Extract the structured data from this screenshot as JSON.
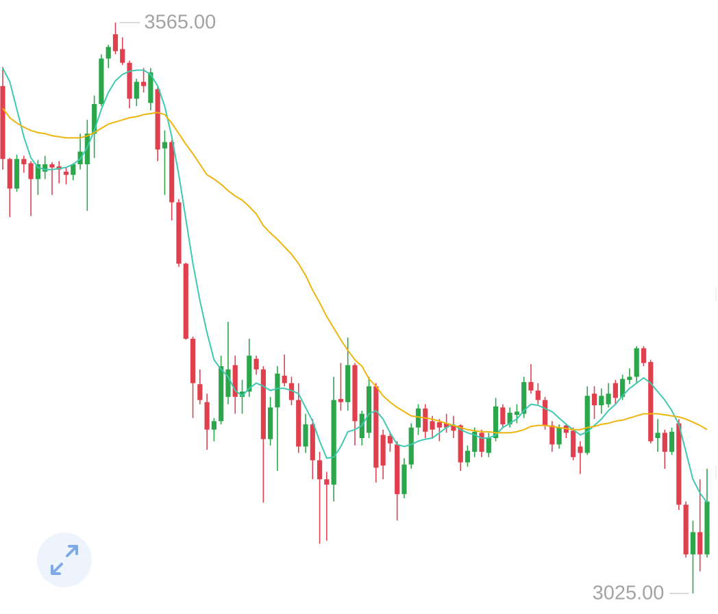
{
  "chart_data": {
    "type": "candlestick",
    "ylim": [
      3005.6,
      3586.4
    ],
    "up_color": "#2ca64b",
    "down_color": "#e0404e",
    "max_label": {
      "value": 3565,
      "label": "3565.00"
    },
    "min_label": {
      "value": 3025,
      "label": "3025.00"
    },
    "open": [
      3505,
      3436,
      3408,
      3436,
      3432,
      3417,
      3424,
      3431,
      3429,
      3424,
      3421,
      3431,
      3431,
      3460,
      3488,
      3531,
      3554,
      3540,
      3527,
      3493,
      3509,
      3489,
      3502,
      3446,
      3452,
      3395,
      3337,
      3266,
      3223,
      3206,
      3180,
      3188,
      3211,
      3241,
      3211,
      3216,
      3247,
      3237,
      3171,
      3201,
      3231,
      3224,
      3208,
      3164,
      3185,
      3151,
      3133,
      3128,
      3209,
      3206,
      3241,
      3172,
      3177,
      3221,
      3175,
      3174,
      3166,
      3119,
      3147,
      3182,
      3200,
      3188,
      3187,
      3186,
      3184,
      3184,
      3149,
      3159,
      3177,
      3158,
      3172,
      3201,
      3185,
      3194,
      3195,
      3225,
      3217,
      3208,
      3184,
      3166,
      3184,
      3179,
      3164,
      3158,
      3214,
      3203,
      3204,
      3224,
      3211,
      3227,
      3230,
      3257,
      3244,
      3172,
      3177,
      3159,
      3186,
      3109,
      3062,
      3083,
      3062
    ],
    "high": [
      3523,
      3437,
      3440,
      3439,
      3434,
      3435,
      3439,
      3433,
      3434,
      3428,
      3432,
      3460,
      3473,
      3496,
      3535,
      3544,
      3565,
      3551,
      3529,
      3512,
      3522,
      3522,
      3504,
      3463,
      3454,
      3398,
      3338,
      3268,
      3237,
      3214,
      3191,
      3250,
      3282,
      3250,
      3227,
      3266,
      3250,
      3240,
      3211,
      3240,
      3251,
      3230,
      3224,
      3195,
      3190,
      3159,
      3140,
      3230,
      3243,
      3267,
      3243,
      3198,
      3230,
      3224,
      3180,
      3178,
      3169,
      3153,
      3186,
      3204,
      3204,
      3193,
      3190,
      3195,
      3193,
      3185,
      3165,
      3182,
      3180,
      3177,
      3210,
      3204,
      3201,
      3204,
      3230,
      3242,
      3224,
      3211,
      3188,
      3185,
      3186,
      3182,
      3169,
      3221,
      3221,
      3219,
      3224,
      3227,
      3232,
      3238,
      3259,
      3259,
      3246,
      3190,
      3180,
      3182,
      3190,
      3112,
      3094,
      3133,
      3143
    ],
    "low": [
      3426,
      3381,
      3405,
      3423,
      3382,
      3402,
      3417,
      3402,
      3413,
      3412,
      3416,
      3426,
      3387,
      3437,
      3486,
      3522,
      3535,
      3525,
      3484,
      3486,
      3499,
      3482,
      3434,
      3402,
      3378,
      3334,
      3265,
      3191,
      3204,
      3161,
      3169,
      3185,
      3204,
      3195,
      3195,
      3211,
      3232,
      3111,
      3165,
      3141,
      3221,
      3203,
      3158,
      3158,
      3133,
      3072,
      3075,
      3112,
      3198,
      3198,
      3165,
      3165,
      3172,
      3130,
      3133,
      3159,
      3094,
      3115,
      3143,
      3175,
      3172,
      3172,
      3169,
      3177,
      3172,
      3141,
      3145,
      3154,
      3154,
      3154,
      3169,
      3182,
      3182,
      3186,
      3191,
      3214,
      3204,
      3180,
      3159,
      3162,
      3172,
      3151,
      3138,
      3156,
      3190,
      3195,
      3201,
      3204,
      3208,
      3223,
      3224,
      3240,
      3167,
      3159,
      3143,
      3156,
      3104,
      3059,
      3025,
      3046,
      3059
    ],
    "close": [
      3436,
      3408,
      3436,
      3431,
      3417,
      3431,
      3431,
      3428,
      3426,
      3421,
      3431,
      3443,
      3460,
      3488,
      3531,
      3542,
      3538,
      3527,
      3493,
      3509,
      3505,
      3518,
      3445,
      3452,
      3395,
      3337,
      3266,
      3224,
      3208,
      3180,
      3188,
      3240,
      3237,
      3211,
      3216,
      3250,
      3237,
      3171,
      3201,
      3233,
      3224,
      3208,
      3164,
      3185,
      3151,
      3133,
      3128,
      3208,
      3206,
      3241,
      3188,
      3195,
      3221,
      3144,
      3146,
      3167,
      3119,
      3147,
      3182,
      3200,
      3178,
      3180,
      3182,
      3182,
      3179,
      3149,
      3160,
      3178,
      3159,
      3172,
      3202,
      3185,
      3196,
      3197,
      3225,
      3217,
      3208,
      3184,
      3166,
      3182,
      3177,
      3154,
      3158,
      3212,
      3203,
      3212,
      3214,
      3210,
      3228,
      3230,
      3257,
      3243,
      3169,
      3177,
      3159,
      3178,
      3109,
      3062,
      3083,
      3062,
      3112
    ],
    "series": [
      {
        "color": "#3cc9b0",
        "values": [
          3522,
          3509,
          3483,
          3457,
          3437,
          3428,
          3426,
          3426,
          3427,
          3428,
          3431,
          3436,
          3447,
          3463,
          3483,
          3499,
          3510,
          3516,
          3519,
          3520,
          3520,
          3516,
          3505,
          3486,
          3457,
          3421,
          3379,
          3337,
          3302,
          3272,
          3246,
          3237,
          3230,
          3217,
          3212,
          3219,
          3224,
          3221,
          3217,
          3219,
          3219,
          3217,
          3214,
          3201,
          3188,
          3169,
          3153,
          3154,
          3164,
          3178,
          3180,
          3184,
          3195,
          3198,
          3190,
          3177,
          3166,
          3164,
          3166,
          3169,
          3171,
          3172,
          3177,
          3182,
          3185,
          3180,
          3177,
          3175,
          3172,
          3172,
          3175,
          3182,
          3186,
          3190,
          3198,
          3204,
          3203,
          3200,
          3197,
          3191,
          3185,
          3180,
          3175,
          3178,
          3184,
          3190,
          3198,
          3204,
          3212,
          3219,
          3224,
          3229,
          3224,
          3216,
          3208,
          3198,
          3185,
          3159,
          3133,
          3120,
          3111
        ]
      },
      {
        "color": "#efb40c",
        "values": [
          3484,
          3475,
          3470,
          3466,
          3463,
          3461,
          3460,
          3458,
          3457,
          3456,
          3456,
          3456,
          3458,
          3461,
          3465,
          3469,
          3471,
          3473,
          3475,
          3476,
          3478,
          3479,
          3480,
          3478,
          3470,
          3460,
          3450,
          3441,
          3431,
          3421,
          3417,
          3412,
          3406,
          3401,
          3397,
          3391,
          3384,
          3373,
          3366,
          3360,
          3353,
          3346,
          3337,
          3326,
          3312,
          3300,
          3287,
          3276,
          3265,
          3255,
          3246,
          3240,
          3228,
          3221,
          3212,
          3206,
          3201,
          3197,
          3193,
          3192,
          3191,
          3190,
          3188,
          3186,
          3184,
          3182,
          3180,
          3179,
          3178,
          3178,
          3177,
          3177,
          3177,
          3178,
          3180,
          3183,
          3184,
          3184,
          3183,
          3182,
          3181,
          3180,
          3180,
          3182,
          3183,
          3185,
          3186,
          3188,
          3189,
          3191,
          3193,
          3195,
          3195,
          3195,
          3194,
          3193,
          3192,
          3190,
          3187,
          3184,
          3180
        ]
      }
    ]
  }
}
